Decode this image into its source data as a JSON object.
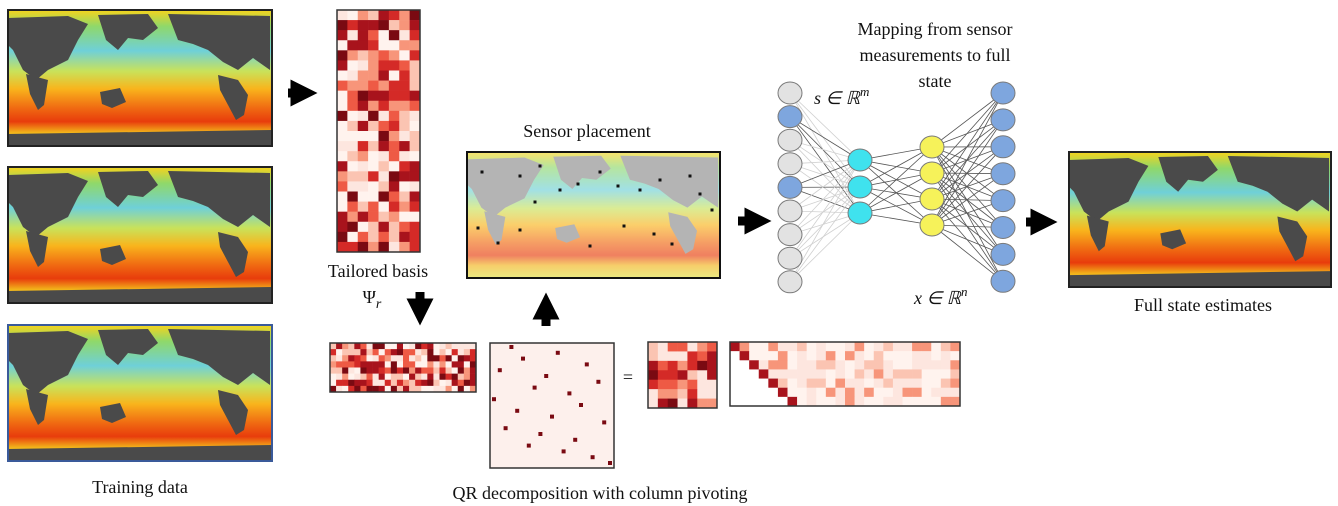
{
  "training_label": "Training data",
  "basis_label": "Tailored basis",
  "basis_symbol": {
    "base": "Ψ",
    "sub": "r"
  },
  "sensor_label": "Sensor placement",
  "qr_label": "QR decomposition with column pivoting",
  "equals": "=",
  "mapping_title": [
    "Mapping from sensor",
    "measurements to full",
    "state"
  ],
  "input_symbol": {
    "base": "s ∈ ℝ",
    "sup": "m"
  },
  "output_symbol": {
    "base": "x ∈ ℝ",
    "sup": "n"
  },
  "output_label": "Full state estimates"
}
